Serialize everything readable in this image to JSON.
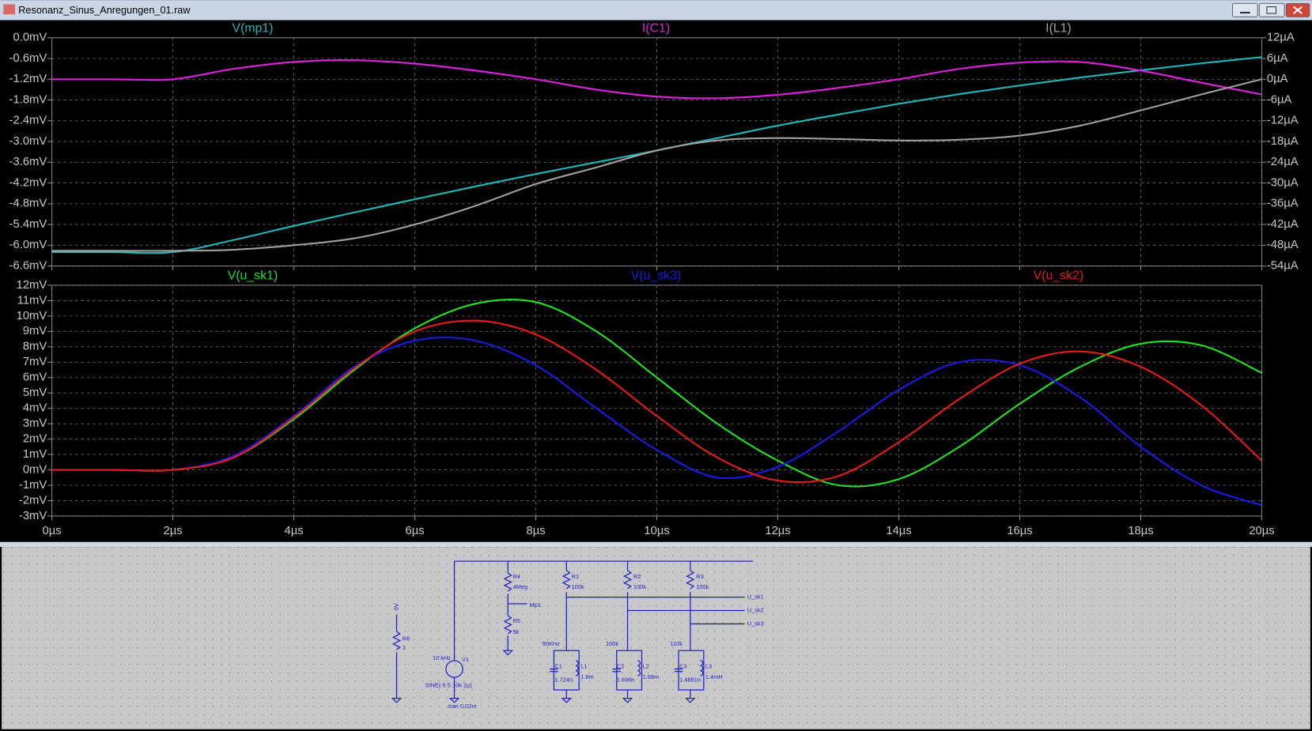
{
  "window": {
    "title": "Resonanz_Sinus_Anregungen_01.raw"
  },
  "chart_data": [
    {
      "type": "line",
      "x": [
        0,
        1,
        2,
        3,
        4,
        5,
        6,
        7,
        8,
        9,
        10,
        11,
        12,
        13,
        14,
        15,
        16,
        17,
        18,
        19,
        20
      ],
      "xlim": [
        0,
        20
      ],
      "ylim": [
        -6.6,
        0
      ],
      "yticks": [
        {
          "value": 0,
          "label": "0.0mV"
        },
        {
          "value": -0.6,
          "label": "-0.6mV"
        },
        {
          "value": -1.2,
          "label": "-1.2mV"
        },
        {
          "value": -1.8,
          "label": "-1.8mV"
        },
        {
          "value": -2.4,
          "label": "-2.4mV"
        },
        {
          "value": -3,
          "label": "-3.0mV"
        },
        {
          "value": -3.6,
          "label": "-3.6mV"
        },
        {
          "value": -4.2,
          "label": "-4.2mV"
        },
        {
          "value": -4.8,
          "label": "-4.8mV"
        },
        {
          "value": -5.4,
          "label": "-5.4mV"
        },
        {
          "value": -6,
          "label": "-6.0mV"
        },
        {
          "value": -6.6,
          "label": "-6.6mV"
        }
      ],
      "y2lim": [
        -54,
        12
      ],
      "y2ticks": [
        {
          "value": 12,
          "label": "12µA"
        },
        {
          "value": 6,
          "label": "6µA"
        },
        {
          "value": 0,
          "label": "0µA"
        },
        {
          "value": -6,
          "label": "-6µA"
        },
        {
          "value": -12,
          "label": "-12µA"
        },
        {
          "value": -18,
          "label": "-18µA"
        },
        {
          "value": -24,
          "label": "-24µA"
        },
        {
          "value": -30,
          "label": "-30µA"
        },
        {
          "value": -36,
          "label": "-36µA"
        },
        {
          "value": -42,
          "label": "-42µA"
        },
        {
          "value": -48,
          "label": "-48µA"
        },
        {
          "value": -54,
          "label": "-54µA"
        }
      ],
      "grid": true,
      "series": [
        {
          "name": "V(mp1)",
          "color": "#1fb8b8",
          "values": [
            -6.2,
            -6.2,
            -6.2,
            -5.85,
            -5.44,
            -5.05,
            -4.67,
            -4.3,
            -3.94,
            -3.6,
            -3.26,
            -2.9,
            -2.54,
            -2.22,
            -1.91,
            -1.63,
            -1.38,
            -1.15,
            -0.94,
            -0.74,
            -0.56
          ]
        },
        {
          "name": "I(C1)",
          "color": "#e020e0",
          "axis": "y2",
          "values": [
            0,
            0,
            0,
            3,
            5,
            5.5,
            4.5,
            2.5,
            0,
            -3,
            -5,
            -5.5,
            -4.5,
            -2.5,
            0,
            3,
            4.8,
            5,
            2.5,
            -1,
            -4.4
          ]
        },
        {
          "name": "I(L1)",
          "color": "#a0a0a0",
          "axis": "y2",
          "values": [
            -49.6,
            -49.6,
            -49.6,
            -49.3,
            -48,
            -46,
            -42,
            -36.6,
            -30.3,
            -25.5,
            -20.6,
            -17.7,
            -17,
            -17.3,
            -17.7,
            -17.5,
            -16.3,
            -13.4,
            -9,
            -4.4,
            0
          ]
        }
      ]
    },
    {
      "type": "line",
      "x": [
        0,
        1,
        2,
        3,
        4,
        5,
        6,
        7,
        8,
        9,
        10,
        11,
        12,
        13,
        14,
        15,
        16,
        17,
        18,
        19,
        20
      ],
      "xlim": [
        0,
        20
      ],
      "xticks": [
        {
          "value": 0,
          "label": "0µs"
        },
        {
          "value": 2,
          "label": "2µs"
        },
        {
          "value": 4,
          "label": "4µs"
        },
        {
          "value": 6,
          "label": "6µs"
        },
        {
          "value": 8,
          "label": "8µs"
        },
        {
          "value": 10,
          "label": "10µs"
        },
        {
          "value": 12,
          "label": "12µs"
        },
        {
          "value": 14,
          "label": "14µs"
        },
        {
          "value": 16,
          "label": "16µs"
        },
        {
          "value": 18,
          "label": "18µs"
        },
        {
          "value": 20,
          "label": "20µs"
        }
      ],
      "ylim": [
        -3,
        12
      ],
      "yticks": [
        {
          "value": 12,
          "label": "12mV"
        },
        {
          "value": 11,
          "label": "11mV"
        },
        {
          "value": 10,
          "label": "10mV"
        },
        {
          "value": 9,
          "label": "9mV"
        },
        {
          "value": 8,
          "label": "8mV"
        },
        {
          "value": 7,
          "label": "7mV"
        },
        {
          "value": 6,
          "label": "6mV"
        },
        {
          "value": 5,
          "label": "5mV"
        },
        {
          "value": 4,
          "label": "4mV"
        },
        {
          "value": 3,
          "label": "3mV"
        },
        {
          "value": 2,
          "label": "2mV"
        },
        {
          "value": 1,
          "label": "1mV"
        },
        {
          "value": 0,
          "label": "0mV"
        },
        {
          "value": -1,
          "label": "-1mV"
        },
        {
          "value": -2,
          "label": "-2mV"
        },
        {
          "value": -3,
          "label": "-3mV"
        }
      ],
      "grid": true,
      "series": [
        {
          "name": "V(u_sk1)",
          "color": "#22e022",
          "values": [
            0,
            0,
            0,
            0.8,
            3.3,
            6.5,
            9.2,
            10.8,
            10.9,
            9.0,
            6.0,
            3.0,
            0.6,
            -1.0,
            -0.6,
            1.5,
            4.3,
            6.7,
            8.2,
            8.1,
            6.3
          ]
        },
        {
          "name": "V(u_sk3)",
          "color": "#1a1ae6",
          "values": [
            0,
            0,
            0,
            0.9,
            3.5,
            6.7,
            8.4,
            8.4,
            6.8,
            4.0,
            1.3,
            -0.5,
            0.2,
            2.5,
            5.2,
            7.0,
            6.8,
            4.7,
            1.5,
            -1.0,
            -2.3
          ]
        },
        {
          "name": "V(u_sk2)",
          "color": "#e61a1a",
          "values": [
            0,
            0,
            0,
            0.8,
            3.4,
            6.6,
            9.0,
            9.7,
            8.8,
            6.5,
            3.5,
            0.8,
            -0.7,
            -0.4,
            1.8,
            4.6,
            6.9,
            7.7,
            6.7,
            4.2,
            0.6
          ]
        }
      ]
    }
  ],
  "schematic": {
    "texts": [
      "R4",
      "4Meg",
      "Mp1",
      "R5",
      "5k",
      "R1",
      "100k",
      "R2",
      "100k",
      "R3",
      "100k",
      "U_sk1",
      "U_sk2",
      "U_sk3",
      "90KHz",
      "C1",
      "1.724n",
      "L1",
      "1.8m",
      "100k",
      "C2",
      "1.698n",
      "L2",
      "1.68m",
      "110k",
      "C3",
      "1.4881n",
      "L3",
      "1.4mH",
      "0V",
      "R6",
      "1",
      "10 kHz",
      "V1",
      "SINE(-5 5 10k 2µ)",
      ".tran 0,02m"
    ]
  }
}
